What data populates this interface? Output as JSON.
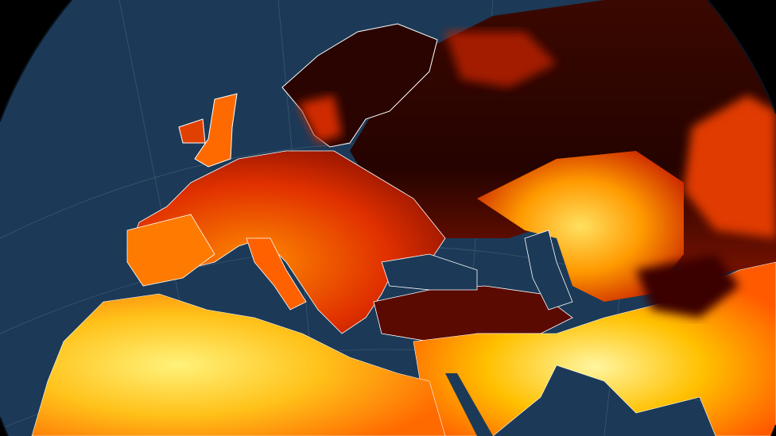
{
  "colors": {
    "space": "#000000",
    "ocean": "#1c3a57",
    "hot_extreme": "#fff27a",
    "hot_high": "#ffb400",
    "hot_mid": "#ff5a00",
    "hot_low": "#b01800",
    "cool": "#2a0500",
    "borders": "#ffffff"
  }
}
